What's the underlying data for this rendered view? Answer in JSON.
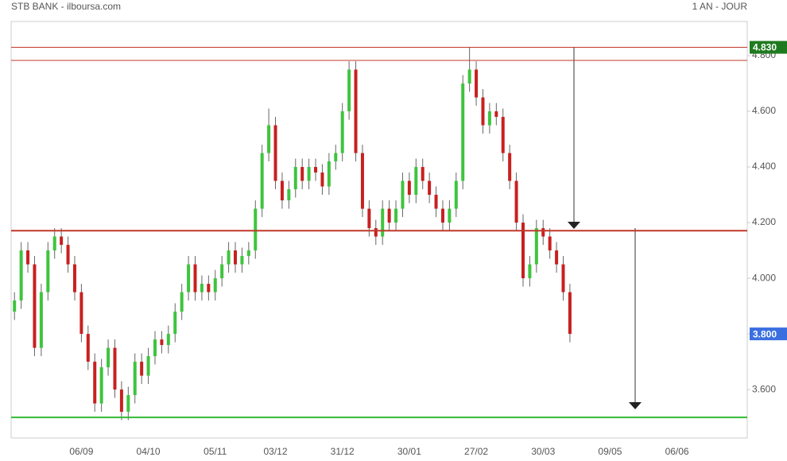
{
  "chart_data": {
    "type": "candlestick",
    "title": "STB BANK - ilboursa.com",
    "subtitle": "1 AN - JOUR",
    "categories": [
      null,
      null,
      null,
      null,
      null,
      null,
      null,
      null,
      null,
      null,
      "06/09",
      null,
      null,
      null,
      null,
      null,
      null,
      null,
      null,
      null,
      "04/10",
      null,
      null,
      null,
      null,
      null,
      null,
      null,
      null,
      null,
      "05/11",
      null,
      null,
      null,
      null,
      null,
      null,
      null,
      null,
      "03/12",
      null,
      null,
      null,
      null,
      null,
      null,
      null,
      null,
      null,
      "31/12",
      null,
      null,
      null,
      null,
      null,
      null,
      null,
      null,
      null,
      "30/01",
      null,
      null,
      null,
      null,
      null,
      null,
      null,
      null,
      null,
      "27/02",
      null,
      null,
      null,
      null,
      null,
      null,
      null,
      null,
      null,
      "30/03",
      null,
      null,
      null,
      null,
      null,
      null,
      null,
      null,
      null,
      "09/05",
      null,
      null,
      null,
      null,
      null,
      null,
      null,
      null,
      null,
      "06/06",
      null,
      null,
      null,
      null,
      null,
      null,
      null,
      null,
      null,
      null
    ],
    "open": [
      3.88,
      3.92,
      4.1,
      4.05,
      3.75,
      3.95,
      4.1,
      4.15,
      4.12,
      4.05,
      3.95,
      3.8,
      3.7,
      3.55,
      3.68,
      3.75,
      3.6,
      3.52,
      3.58,
      3.7,
      3.65,
      3.72,
      3.78,
      3.76,
      3.8,
      3.88,
      3.95,
      4.05,
      3.95,
      3.98,
      3.95,
      4.0,
      4.05,
      4.1,
      4.05,
      4.08,
      4.1,
      4.25,
      4.45,
      4.55,
      4.35,
      4.28,
      4.32,
      4.4,
      4.35,
      4.4,
      4.38,
      4.33,
      4.42,
      4.45,
      4.6,
      4.75,
      4.45,
      4.25,
      4.18,
      4.15,
      4.25,
      4.2,
      4.25,
      4.35,
      4.3,
      4.4,
      4.35,
      4.3,
      4.25,
      4.2,
      4.25,
      4.35,
      4.7,
      4.75,
      4.65,
      4.55,
      4.6,
      4.58,
      4.45,
      4.35,
      4.2,
      4.0,
      4.05,
      4.18,
      4.15,
      4.1,
      4.05,
      3.95,
      null,
      null,
      null,
      null,
      null,
      null,
      null,
      null,
      null,
      null,
      null,
      null,
      null,
      null,
      null,
      null,
      null,
      null,
      null,
      null,
      null,
      null,
      null,
      null,
      null,
      null
    ],
    "high": [
      3.95,
      4.13,
      4.13,
      4.08,
      3.98,
      4.13,
      4.18,
      4.18,
      4.15,
      4.08,
      3.98,
      3.83,
      3.73,
      3.71,
      3.78,
      3.78,
      3.63,
      3.61,
      3.73,
      3.73,
      3.75,
      3.81,
      3.81,
      3.83,
      3.91,
      3.98,
      4.08,
      4.08,
      4.01,
      4.01,
      4.03,
      4.08,
      4.13,
      4.13,
      4.11,
      4.13,
      4.28,
      4.48,
      4.61,
      4.58,
      4.38,
      4.35,
      4.43,
      4.43,
      4.43,
      4.43,
      4.41,
      4.45,
      4.48,
      4.63,
      4.78,
      4.78,
      4.48,
      4.28,
      4.21,
      4.28,
      4.28,
      4.28,
      4.38,
      4.38,
      4.43,
      4.43,
      4.38,
      4.33,
      4.28,
      4.28,
      4.38,
      4.73,
      4.83,
      4.78,
      4.68,
      4.63,
      4.63,
      4.61,
      4.48,
      4.38,
      4.23,
      4.08,
      4.21,
      4.21,
      4.18,
      4.13,
      4.08,
      3.98,
      null,
      null,
      null,
      null,
      null,
      null,
      null,
      null,
      null,
      null,
      null,
      null,
      null,
      null,
      null,
      null,
      null,
      null,
      null,
      null,
      null,
      null,
      null,
      null,
      null,
      null
    ],
    "low": [
      3.85,
      3.89,
      4.02,
      3.72,
      3.72,
      3.92,
      4.07,
      4.09,
      4.02,
      3.92,
      3.77,
      3.67,
      3.52,
      3.52,
      3.65,
      3.57,
      3.49,
      3.49,
      3.55,
      3.62,
      3.62,
      3.69,
      3.73,
      3.73,
      3.77,
      3.85,
      3.92,
      3.92,
      3.92,
      3.92,
      3.92,
      3.97,
      4.02,
      4.02,
      4.02,
      4.05,
      4.07,
      4.22,
      4.42,
      4.32,
      4.25,
      4.25,
      4.29,
      4.32,
      4.32,
      4.35,
      4.3,
      4.3,
      4.39,
      4.42,
      4.57,
      4.42,
      4.22,
      4.15,
      4.12,
      4.12,
      4.17,
      4.17,
      4.22,
      4.27,
      4.27,
      4.32,
      4.27,
      4.22,
      4.17,
      4.17,
      4.22,
      4.32,
      4.67,
      4.62,
      4.52,
      4.52,
      4.55,
      4.42,
      4.32,
      4.17,
      3.97,
      3.97,
      4.02,
      4.12,
      4.07,
      4.02,
      3.92,
      3.77,
      null,
      null,
      null,
      null,
      null,
      null,
      null,
      null,
      null,
      null,
      null,
      null,
      null,
      null,
      null,
      null,
      null,
      null,
      null,
      null,
      null,
      null,
      null,
      null,
      null,
      null
    ],
    "close": [
      3.92,
      4.1,
      4.05,
      3.75,
      3.95,
      4.1,
      4.15,
      4.12,
      4.05,
      3.95,
      3.8,
      3.7,
      3.55,
      3.68,
      3.75,
      3.6,
      3.52,
      3.58,
      3.7,
      3.65,
      3.72,
      3.78,
      3.76,
      3.8,
      3.88,
      3.95,
      4.05,
      3.95,
      3.98,
      3.95,
      4.0,
      4.05,
      4.1,
      4.05,
      4.08,
      4.1,
      4.25,
      4.45,
      4.55,
      4.35,
      4.28,
      4.32,
      4.4,
      4.35,
      4.4,
      4.38,
      4.33,
      4.42,
      4.45,
      4.6,
      4.75,
      4.45,
      4.25,
      4.18,
      4.15,
      4.25,
      4.2,
      4.25,
      4.35,
      4.3,
      4.4,
      4.35,
      4.3,
      4.25,
      4.2,
      4.25,
      4.35,
      4.7,
      4.75,
      4.65,
      4.55,
      4.6,
      4.58,
      4.45,
      4.35,
      4.2,
      4.0,
      4.05,
      4.18,
      4.15,
      4.1,
      4.05,
      3.95,
      3.8,
      null,
      null,
      null,
      null,
      null,
      null,
      null,
      null,
      null,
      null,
      null,
      null,
      null,
      null,
      null,
      null,
      null,
      null,
      null,
      null,
      null,
      null,
      null,
      null,
      null,
      null
    ],
    "up_color": "#3ec43e",
    "down_color": "#c82020",
    "ylim": [
      3.426,
      4.923
    ],
    "yticks": [
      {
        "value": 3.6,
        "label": "3.600"
      },
      {
        "value": 3.8,
        "label": "3.800"
      },
      {
        "value": 4.0,
        "label": "4.000"
      },
      {
        "value": 4.2,
        "label": "4.200"
      },
      {
        "value": 4.4,
        "label": "4.400"
      },
      {
        "value": 4.6,
        "label": "4.600"
      },
      {
        "value": 4.8,
        "label": "4.800"
      }
    ],
    "grid": false,
    "levels": [
      {
        "value": 4.83,
        "color": "#c0392b",
        "width": 1
      },
      {
        "value": 4.783,
        "color": "#c0392b",
        "width": 1
      },
      {
        "value": 4.171,
        "color": "#c0392b",
        "width": 2
      },
      {
        "value": 3.5,
        "color": "#33bb33",
        "width": 2
      }
    ],
    "price_labels": [
      {
        "value": 4.83,
        "label": "4.830",
        "color": "#1f7a1f"
      },
      {
        "value": 3.8,
        "label": "3.800",
        "color": "#3b6fe0"
      }
    ]
  }
}
